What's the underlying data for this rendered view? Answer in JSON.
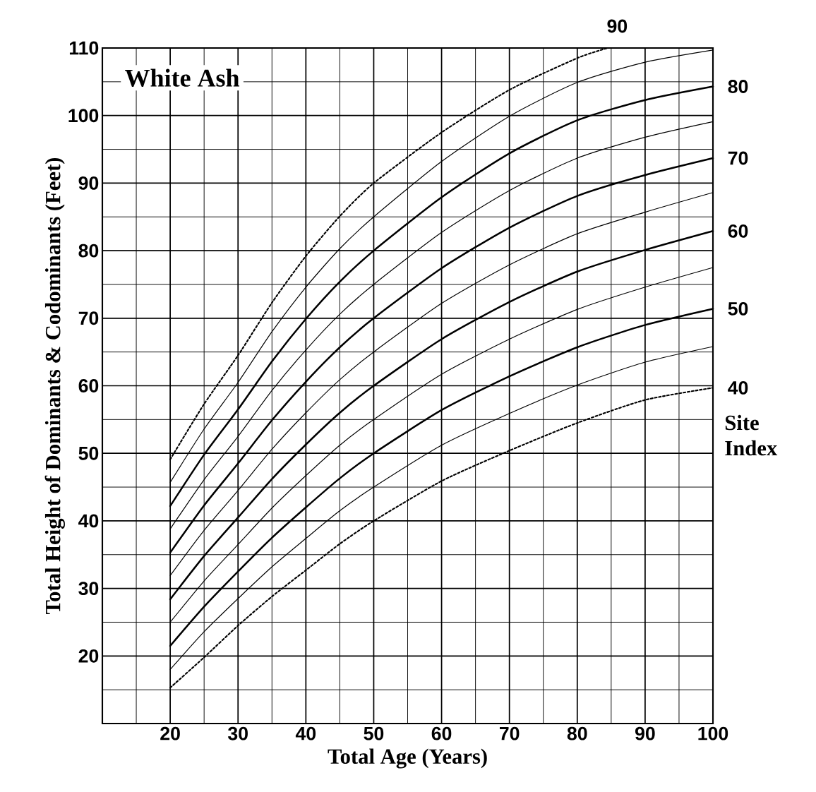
{
  "chart_data": {
    "type": "line",
    "title": "White Ash",
    "xlabel": "Total Age (Years)",
    "ylabel": "Total Height of Dominants & Codominants (Feet)",
    "legend_title": "Site Index",
    "x": [
      20,
      25,
      30,
      35,
      40,
      45,
      50,
      60,
      70,
      80,
      90,
      100
    ],
    "xlim": [
      10,
      100
    ],
    "ylim": [
      10,
      110
    ],
    "xticks": [
      20,
      30,
      40,
      50,
      60,
      70,
      80,
      90,
      100
    ],
    "yticks": [
      20,
      30,
      40,
      50,
      60,
      70,
      80,
      90,
      100,
      110
    ],
    "grid": true,
    "series": [
      {
        "name": "40",
        "color": "#000000",
        "line_style": "dotted",
        "values": [
          15.3,
          19.8,
          24.5,
          28.8,
          32.7,
          36.6,
          40,
          45.9,
          50.4,
          54.5,
          57.9,
          59.7
        ]
      },
      {
        "color": "#000000",
        "line_style": "solid",
        "values": [
          18.0,
          23.6,
          28.5,
          33.2,
          37.4,
          41.5,
          45,
          51.2,
          55.9,
          60.1,
          63.5,
          65.8
        ]
      },
      {
        "name": "50",
        "color": "#000000",
        "line_style": "solid",
        "values": [
          21.5,
          27.3,
          32.5,
          37.5,
          42,
          46.3,
          50,
          56.4,
          61.4,
          65.7,
          69,
          71.4
        ]
      },
      {
        "color": "#000000",
        "line_style": "solid",
        "values": [
          25.0,
          31.1,
          36.5,
          41.9,
          46.7,
          51.2,
          55,
          61.7,
          66.9,
          71.3,
          74.6,
          77.5
        ]
      },
      {
        "name": "60",
        "color": "#000000",
        "line_style": "solid",
        "values": [
          28.4,
          34.8,
          40.5,
          46.2,
          51.3,
          56.0,
          60,
          66.9,
          72.4,
          76.9,
          80.1,
          82.9
        ]
      },
      {
        "color": "#000000",
        "line_style": "solid",
        "values": [
          31.9,
          38.6,
          44.5,
          50.6,
          56.0,
          60.9,
          65,
          72.2,
          77.9,
          82.5,
          85.7,
          88.6
        ]
      },
      {
        "name": "70",
        "color": "#000000",
        "line_style": "solid",
        "values": [
          35.3,
          42.3,
          48.5,
          54.9,
          60.6,
          65.7,
          70,
          77.4,
          83.4,
          88.1,
          91.2,
          93.7
        ]
      },
      {
        "color": "#000000",
        "line_style": "solid",
        "values": [
          38.8,
          46.1,
          52.5,
          59.3,
          65.3,
          70.6,
          75,
          82.7,
          88.9,
          93.7,
          96.8,
          99.1
        ]
      },
      {
        "name": "80",
        "color": "#000000",
        "line_style": "solid",
        "values": [
          42.2,
          49.8,
          56.5,
          63.6,
          69.9,
          75.4,
          80,
          87.9,
          94.4,
          99.3,
          102.3,
          104.3
        ]
      },
      {
        "color": "#000000",
        "line_style": "solid",
        "values": [
          45.7,
          53.6,
          60.5,
          68.0,
          74.6,
          80.3,
          85,
          93.2,
          99.9,
          104.9,
          107.9,
          109.7
        ]
      },
      {
        "name": "90",
        "color": "#000000",
        "line_style": "dotted",
        "x": [
          20,
          25,
          30,
          35,
          40,
          45,
          50,
          60,
          70,
          80,
          84.5
        ],
        "values": [
          49.1,
          57.3,
          64.5,
          72.3,
          79.2,
          85.1,
          90,
          97.5,
          103.8,
          108.5,
          110
        ]
      }
    ]
  }
}
